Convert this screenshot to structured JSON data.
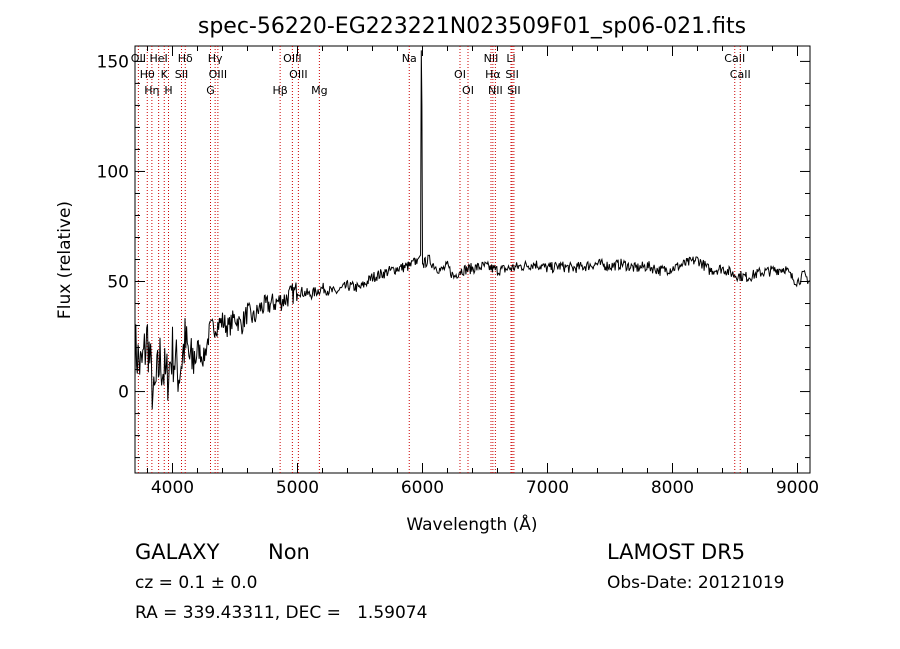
{
  "chart_data": {
    "type": "line",
    "title": "spec-56220-EG223221N023509F01_sp06-021.fits",
    "xlabel": "Wavelength (Å)",
    "ylabel": "Flux (relative)",
    "xlim": [
      3700,
      9100
    ],
    "ylim": [
      -37,
      157
    ],
    "xticks": [
      4000,
      5000,
      6000,
      7000,
      8000,
      9000
    ],
    "yticks": [
      0,
      50,
      100,
      150
    ],
    "grid": false,
    "series": [
      {
        "x": [
          3700,
          3750,
          3800,
          3850,
          3900,
          3950,
          4000,
          4050,
          4100,
          4150,
          4200,
          4250,
          4300,
          4350,
          4400,
          4450,
          4500,
          4550,
          4600,
          4650,
          4700,
          4800,
          4900,
          5000,
          5100,
          5200,
          5300,
          5400,
          5500,
          5600,
          5700,
          5800,
          5900,
          5960,
          5985,
          5990,
          5995,
          6000,
          6010,
          6050,
          6100,
          6150,
          6200,
          6250,
          6300,
          6400,
          6500,
          6600,
          6700,
          6800,
          6900,
          7000,
          7100,
          7200,
          7300,
          7400,
          7500,
          7600,
          7700,
          7800,
          7900,
          8000,
          8100,
          8200,
          8300,
          8400,
          8500,
          8600,
          8700,
          8800,
          8900,
          8950,
          9000,
          9050,
          9100
        ],
        "values": [
          20,
          10,
          25,
          -5,
          15,
          5,
          18,
          8,
          22,
          12,
          20,
          15,
          28,
          30,
          32,
          29,
          34,
          30,
          36,
          33,
          38,
          40,
          42,
          46,
          44,
          47,
          45,
          48,
          47,
          52,
          54,
          56,
          57,
          60,
          62,
          155,
          130,
          58,
          58,
          60,
          57,
          55,
          57,
          52,
          55,
          56,
          57,
          55,
          56,
          57,
          58,
          56,
          57,
          56,
          57,
          58,
          57,
          58,
          56,
          57,
          55,
          56,
          58,
          60,
          55,
          56,
          53,
          52,
          54,
          55,
          56,
          52,
          50,
          53,
          50
        ]
      }
    ],
    "lines": [
      {
        "label": "OII",
        "x": 3727
      },
      {
        "label": "Hθ",
        "x": 3798
      },
      {
        "label": "Hη",
        "x": 3835
      },
      {
        "label": "HeI",
        "x": 3889
      },
      {
        "label": "K",
        "x": 3934
      },
      {
        "label": "H",
        "x": 3968
      },
      {
        "label": "Hδ",
        "x": 4102
      },
      {
        "label": "SII",
        "x": 4072
      },
      {
        "label": "G",
        "x": 4304
      },
      {
        "label": "Hγ",
        "x": 4341
      },
      {
        "label": "OIII",
        "x": 4363
      },
      {
        "label": "Hβ",
        "x": 4861
      },
      {
        "label": "OIII",
        "x": 4959
      },
      {
        "label": "OIII",
        "x": 5007
      },
      {
        "label": "Mg",
        "x": 5175
      },
      {
        "label": "Na",
        "x": 5894
      },
      {
        "label": "OI",
        "x": 6300
      },
      {
        "label": "OI",
        "x": 6364
      },
      {
        "label": "NII",
        "x": 6548
      },
      {
        "label": "Hα",
        "x": 6563
      },
      {
        "label": "NII",
        "x": 6583
      },
      {
        "label": "Li",
        "x": 6708
      },
      {
        "label": "SII",
        "x": 6717
      },
      {
        "label": "SII",
        "x": 6731
      },
      {
        "label": "CaII",
        "x": 8498
      },
      {
        "label": "CaII",
        "x": 8542
      }
    ]
  },
  "footer": {
    "classification": "GALAXY",
    "subclass": "Non",
    "redshift": "cz = 0.1 ± 0.0",
    "coords": "RA = 339.43311, DEC =   1.59074",
    "survey": "LAMOST DR5",
    "obs_date": "Obs-Date: 20121019"
  }
}
